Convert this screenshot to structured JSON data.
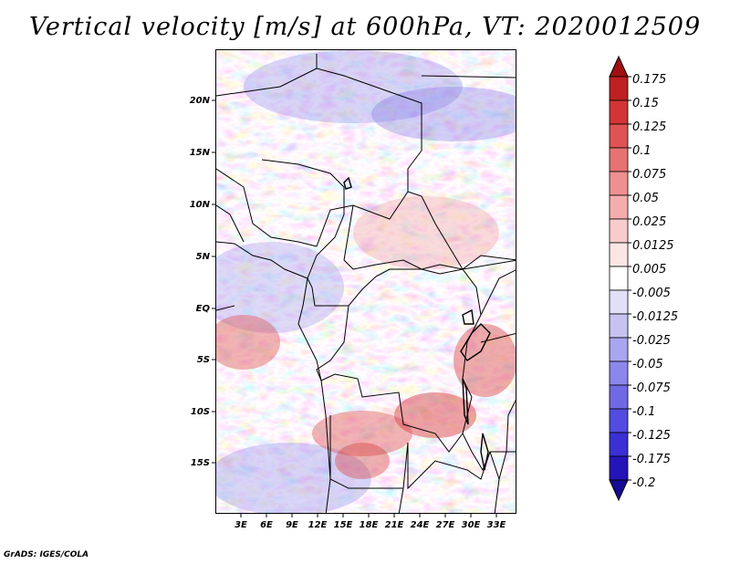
{
  "title": "Vertical velocity [m/s] at 600hPa, VT: 2020012509",
  "lat_labels": [
    "20N",
    "15N",
    "10N",
    "5N",
    "EQ",
    "5S",
    "10S",
    "15S"
  ],
  "lon_labels": [
    "3E",
    "6E",
    "9E",
    "12E",
    "15E",
    "18E",
    "21E",
    "24E",
    "27E",
    "30E",
    "33E"
  ],
  "colorbar": {
    "levels": [
      "0.175",
      "0.15",
      "0.125",
      "0.1",
      "0.075",
      "0.05",
      "0.025",
      "0.0125",
      "0.005",
      "-0.005",
      "-0.0125",
      "-0.025",
      "-0.05",
      "-0.075",
      "-0.1",
      "-0.125",
      "-0.175",
      "-0.2"
    ],
    "colors": [
      "#a01010",
      "#be2121",
      "#d13535",
      "#de5454",
      "#e77272",
      "#ee9090",
      "#f4adad",
      "#f8cccc",
      "#fbe6e6",
      "#ffffff",
      "#e2e0f8",
      "#c6c3f3",
      "#a9a5ee",
      "#8c87ea",
      "#6f69e5",
      "#524ce0",
      "#3a30d4",
      "#2415b9",
      "#160a92"
    ]
  },
  "credit": "GrADS: IGES/COLA"
}
